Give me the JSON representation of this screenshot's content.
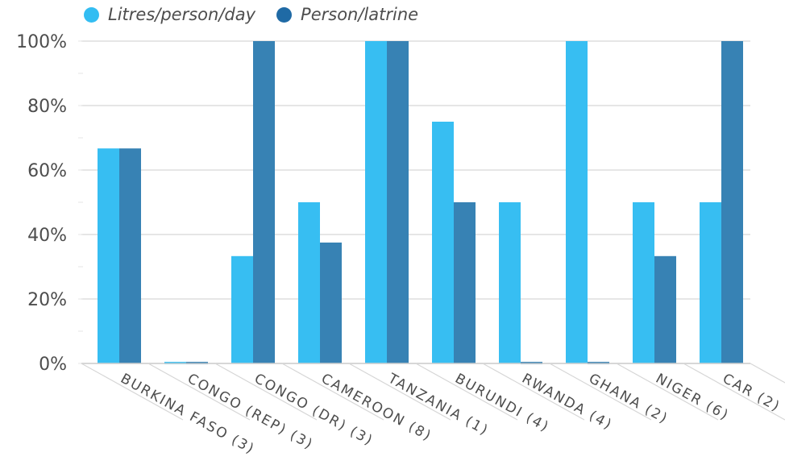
{
  "chart_data": {
    "type": "bar",
    "categories": [
      "BURKINA FASO (3)",
      "CONGO (REP) (3)",
      "CONGO (DR) (3)",
      "CAMEROON (8)",
      "TANZANIA (1)",
      "BURUNDI (4)",
      "RWANDA (4)",
      "GHANA (2)",
      "NIGER (6)",
      "CAR (2)"
    ],
    "series": [
      {
        "name": "Litres/person/day",
        "color": "#33bdf2",
        "values": [
          66.7,
          0,
          33.3,
          50,
          100,
          75,
          50,
          100,
          50,
          50
        ]
      },
      {
        "name": "Person/latrine",
        "color": "#3380b3",
        "values": [
          66.7,
          0,
          100,
          37.5,
          100,
          50,
          0,
          0,
          33.3,
          100
        ]
      }
    ],
    "yticks": [
      "0%",
      "20%",
      "40%",
      "60%",
      "80%",
      "100%"
    ],
    "ylim": [
      0,
      100
    ],
    "grid": true,
    "legend_position": "top-left"
  }
}
